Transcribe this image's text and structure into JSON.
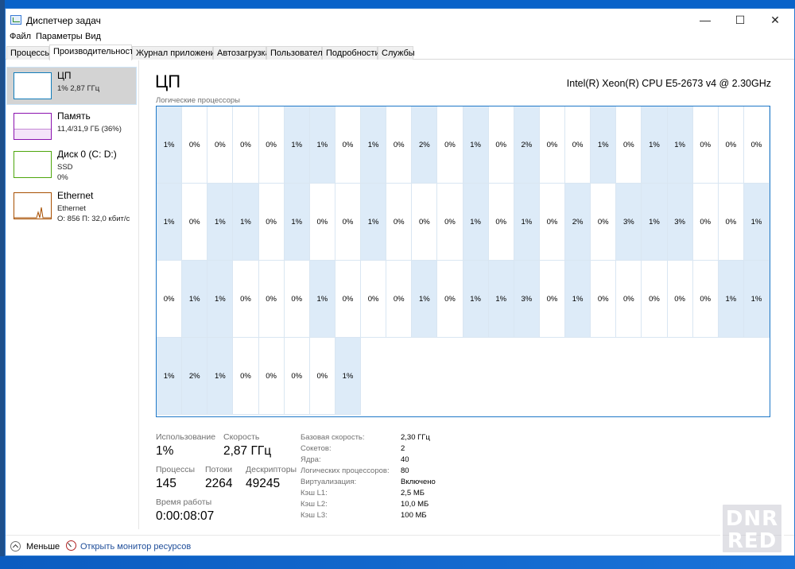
{
  "window": {
    "title": "Диспетчер задач",
    "controls": {
      "minimize": "—",
      "maximize": "☐",
      "close": "✕"
    }
  },
  "menu": [
    "Файл",
    "Параметры",
    "Вид"
  ],
  "tabs": [
    {
      "label": "Процессы",
      "active": false
    },
    {
      "label": "Производительность",
      "active": true
    },
    {
      "label": "Журнал приложений",
      "active": false
    },
    {
      "label": "Автозагрузка",
      "active": false
    },
    {
      "label": "Пользователи",
      "active": false
    },
    {
      "label": "Подробности",
      "active": false
    },
    {
      "label": "Службы",
      "active": false
    }
  ],
  "sidebar": {
    "items": [
      {
        "name": "ЦП",
        "line1": "1% 2,87 ГГц",
        "line2": "",
        "line3": "",
        "color": "#117dbb",
        "active": true
      },
      {
        "name": "Память",
        "line1": "11,4/31,9 ГБ (36%)",
        "line2": "",
        "line3": "",
        "color": "#8b12ae",
        "active": false
      },
      {
        "name": "Диск 0 (C: D:)",
        "line1": "SSD",
        "line2": "0%",
        "line3": "",
        "color": "#4da60c",
        "active": false
      },
      {
        "name": "Ethernet",
        "line1": "Ethernet",
        "line2": "О: 856 П: 32,0 кбит/с",
        "line3": "",
        "color": "#a74f01",
        "active": false
      }
    ]
  },
  "main": {
    "title": "ЦП",
    "cpu_model": "Intel(R) Xeon(R) CPU E5-2673 v4 @ 2.30GHz",
    "grid_label": "Логические процессоры",
    "cores": [
      "1%",
      "0%",
      "0%",
      "0%",
      "0%",
      "1%",
      "1%",
      "0%",
      "1%",
      "0%",
      "2%",
      "0%",
      "1%",
      "0%",
      "2%",
      "0%",
      "0%",
      "1%",
      "0%",
      "1%",
      "1%",
      "0%",
      "0%",
      "0%",
      "1%",
      "0%",
      "1%",
      "1%",
      "0%",
      "1%",
      "0%",
      "0%",
      "1%",
      "0%",
      "0%",
      "0%",
      "1%",
      "0%",
      "1%",
      "0%",
      "2%",
      "0%",
      "3%",
      "1%",
      "3%",
      "0%",
      "0%",
      "1%",
      "0%",
      "1%",
      "1%",
      "0%",
      "0%",
      "0%",
      "1%",
      "0%",
      "0%",
      "0%",
      "1%",
      "0%",
      "1%",
      "1%",
      "3%",
      "0%",
      "1%",
      "0%",
      "0%",
      "0%",
      "0%",
      "0%",
      "1%",
      "1%",
      "1%",
      "2%",
      "1%",
      "0%",
      "0%",
      "0%",
      "0%",
      "1%"
    ]
  },
  "stats": {
    "usage_label": "Использование",
    "usage_value": "1%",
    "speed_label": "Скорость",
    "speed_value": "2,87 ГГц",
    "processes_label": "Процессы",
    "processes_value": "145",
    "threads_label": "Потоки",
    "threads_value": "2264",
    "handles_label": "Дескрипторы",
    "handles_value": "49245",
    "uptime_label": "Время работы",
    "uptime_value": "0:00:08:07"
  },
  "specs": [
    {
      "label": "Базовая скорость:",
      "value": "2,30 ГГц"
    },
    {
      "label": "Сокетов:",
      "value": "2"
    },
    {
      "label": "Ядра:",
      "value": "40"
    },
    {
      "label": "Логических процессоров:",
      "value": "80"
    },
    {
      "label": "Виртуализация:",
      "value": "Включено"
    },
    {
      "label": "Кэш L1:",
      "value": "2,5 МБ"
    },
    {
      "label": "Кэш L2:",
      "value": "10,0 МБ"
    },
    {
      "label": "Кэш L3:",
      "value": "100 МБ"
    }
  ],
  "footer": {
    "less_label": "Меньше",
    "resource_monitor_label": "Открыть монитор ресурсов"
  },
  "watermark": {
    "line1": "DNR",
    "line2": "RED"
  }
}
